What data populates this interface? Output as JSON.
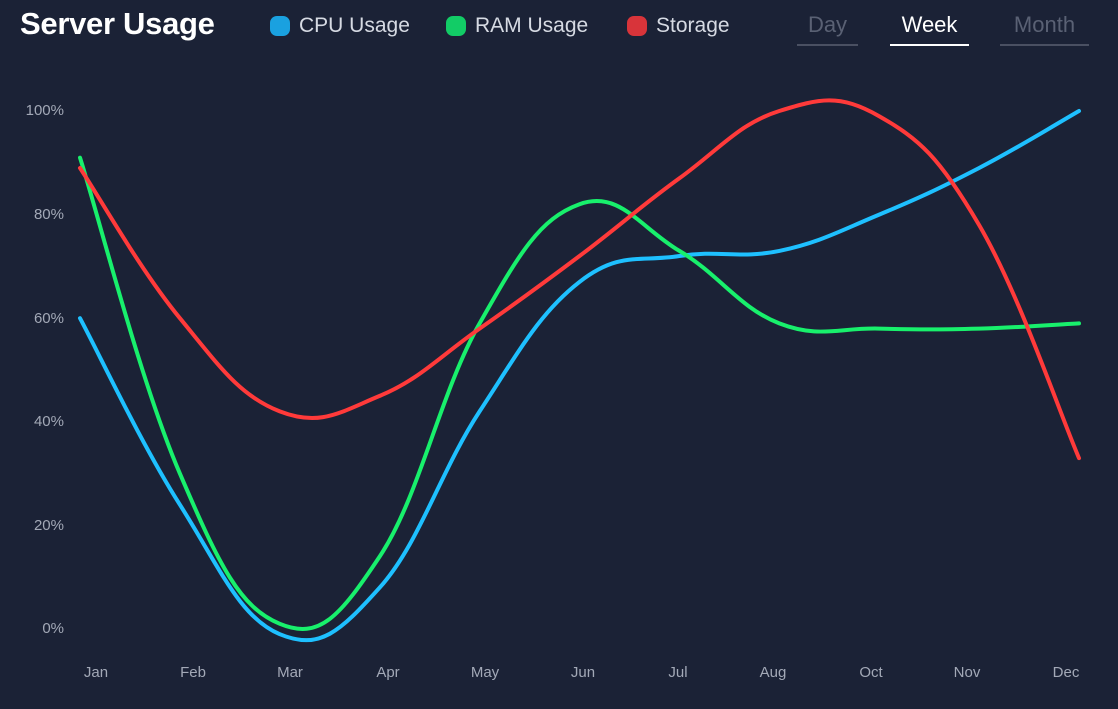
{
  "title": "Server Usage",
  "legend": [
    {
      "label": "CPU Usage",
      "color": "#1aa1e0"
    },
    {
      "label": "RAM Usage",
      "color": "#12cc66"
    },
    {
      "label": "Storage",
      "color": "#d8343a"
    }
  ],
  "range_tabs": [
    {
      "label": "Day",
      "active": false
    },
    {
      "label": "Week",
      "active": true
    },
    {
      "label": "Month",
      "active": false
    }
  ],
  "chart_data": {
    "type": "line",
    "title": "Server Usage",
    "xlabel": "",
    "ylabel": "",
    "categories": [
      "Jan",
      "Feb",
      "Mar",
      "Apr",
      "May",
      "Jun",
      "Jul",
      "Aug",
      "Oct",
      "Nov",
      "Dec"
    ],
    "y_ticks": [
      "0%",
      "20%",
      "40%",
      "60%",
      "80%",
      "100%"
    ],
    "ylim": [
      0,
      100
    ],
    "grid": false,
    "legend_position": "top",
    "series": [
      {
        "name": "CPU Usage",
        "color": "#1ec0ff",
        "values": [
          60,
          24,
          -1,
          8,
          42,
          67,
          72,
          73,
          80,
          89,
          100
        ]
      },
      {
        "name": "RAM Usage",
        "color": "#18f06c",
        "values": [
          91,
          30,
          1,
          14,
          59,
          82,
          73,
          59,
          58,
          58,
          59
        ]
      },
      {
        "name": "Storage",
        "color": "#ff3a3a",
        "values": [
          89,
          60,
          42,
          45,
          58,
          72,
          87,
          100,
          99,
          78,
          33
        ]
      }
    ]
  }
}
